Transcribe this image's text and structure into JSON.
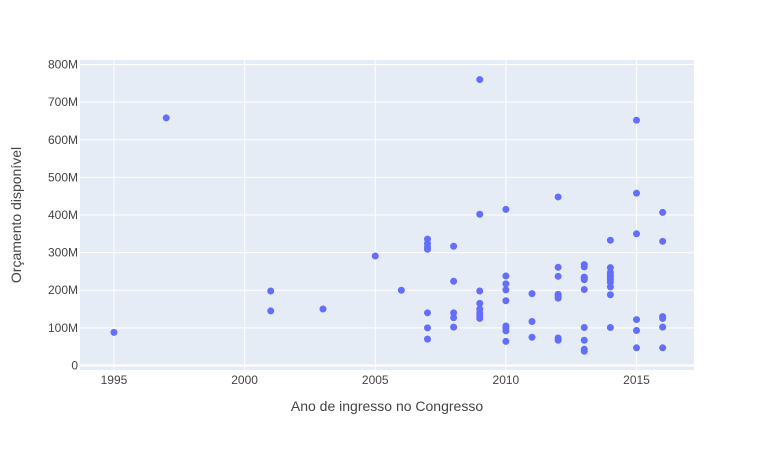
{
  "chart_data": {
    "type": "scatter",
    "xlabel": "Ano de ingresso no Congresso",
    "ylabel": "Orçamento disponível",
    "xlim": [
      1993.7,
      2017.2
    ],
    "ylim": [
      -12000000,
      812000000
    ],
    "x_ticks": [
      1995,
      2000,
      2005,
      2010,
      2015
    ],
    "y_ticks": [
      0,
      100000000,
      200000000,
      300000000,
      400000000,
      500000000,
      600000000,
      700000000,
      800000000
    ],
    "y_tick_labels": [
      "0",
      "100M",
      "200M",
      "300M",
      "400M",
      "500M",
      "600M",
      "700M",
      "800M"
    ],
    "grid": true,
    "colors": {
      "marker": "#636efa",
      "plot_bg": "#e5ecf6",
      "grid": "#ffffff",
      "text": "#444444"
    },
    "x": [
      1995,
      1997,
      2001,
      2001,
      2003,
      2005,
      2006,
      2007,
      2007,
      2007,
      2007,
      2007,
      2007,
      2007,
      2008,
      2008,
      2008,
      2008,
      2008,
      2009,
      2009,
      2009,
      2009,
      2009,
      2009,
      2009,
      2009,
      2010,
      2010,
      2010,
      2010,
      2010,
      2010,
      2010,
      2010,
      2010,
      2011,
      2011,
      2011,
      2012,
      2012,
      2012,
      2012,
      2012,
      2012,
      2012,
      2012,
      2013,
      2013,
      2013,
      2013,
      2013,
      2013,
      2013,
      2013,
      2013,
      2013,
      2014,
      2014,
      2014,
      2014,
      2014,
      2014,
      2014,
      2014,
      2014,
      2014,
      2015,
      2015,
      2015,
      2015,
      2015,
      2015,
      2016,
      2016,
      2016,
      2016,
      2016,
      2016
    ],
    "y": [
      88000000,
      658000000,
      198000000,
      145000000,
      150000000,
      291000000,
      200000000,
      336000000,
      324000000,
      315000000,
      309000000,
      140000000,
      100000000,
      70000000,
      317000000,
      224000000,
      140000000,
      127000000,
      102000000,
      760000000,
      402000000,
      198000000,
      165000000,
      150000000,
      140000000,
      132000000,
      125000000,
      415000000,
      238000000,
      217000000,
      201000000,
      172000000,
      105000000,
      100000000,
      92000000,
      64000000,
      191000000,
      117000000,
      75000000,
      448000000,
      261000000,
      237000000,
      189000000,
      185000000,
      179000000,
      73000000,
      67000000,
      268000000,
      262000000,
      235000000,
      232000000,
      228000000,
      202000000,
      101000000,
      67000000,
      43000000,
      38000000,
      333000000,
      260000000,
      247000000,
      240000000,
      235000000,
      228000000,
      221000000,
      209000000,
      188000000,
      101000000,
      652000000,
      458000000,
      350000000,
      122000000,
      93000000,
      47000000,
      407000000,
      330000000,
      130000000,
      125000000,
      102000000,
      47000000
    ]
  }
}
